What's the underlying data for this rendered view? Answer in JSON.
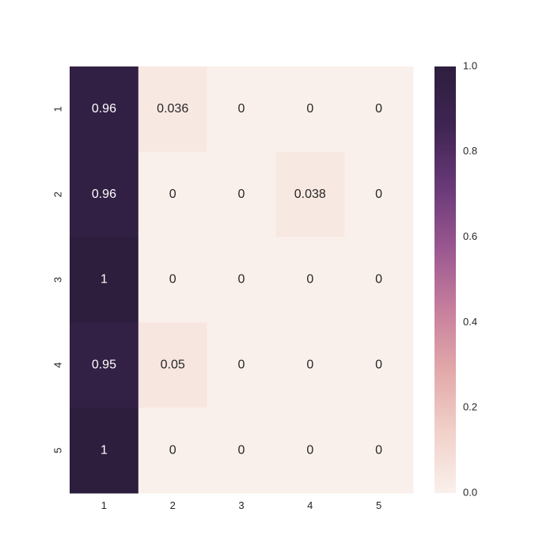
{
  "chart_data": {
    "type": "heatmap",
    "x_labels": [
      "1",
      "2",
      "3",
      "4",
      "5"
    ],
    "y_labels": [
      "1",
      "2",
      "3",
      "4",
      "5"
    ],
    "values": [
      [
        0.96,
        0.036,
        0,
        0,
        0
      ],
      [
        0.96,
        0,
        0,
        0.038,
        0
      ],
      [
        1,
        0,
        0,
        0,
        0
      ],
      [
        0.95,
        0.05,
        0,
        0,
        0
      ],
      [
        1,
        0,
        0,
        0,
        0
      ]
    ],
    "annotations": [
      [
        "0.96",
        "0.036",
        "0",
        "0",
        "0"
      ],
      [
        "0.96",
        "0",
        "0",
        "0.038",
        "0"
      ],
      [
        "1",
        "0",
        "0",
        "0",
        "0"
      ],
      [
        "0.95",
        "0.05",
        "0",
        "0",
        "0"
      ],
      [
        "1",
        "0",
        "0",
        "0",
        "0"
      ]
    ],
    "vmin": 0,
    "vmax": 1,
    "colorbar": {
      "ticks": [
        0.0,
        0.2,
        0.4,
        0.6,
        0.8,
        1.0
      ],
      "tick_labels": [
        "0.0",
        "0.2",
        "0.4",
        "0.6",
        "0.8",
        "1.0"
      ]
    },
    "colormap": [
      "#faf0eb",
      "#f1d1c9",
      "#e2a9a9",
      "#c77f9d",
      "#9b5890",
      "#6a3a78",
      "#3f2553",
      "#2d1e3e"
    ],
    "grid": false,
    "legend": "colorbar-right"
  }
}
